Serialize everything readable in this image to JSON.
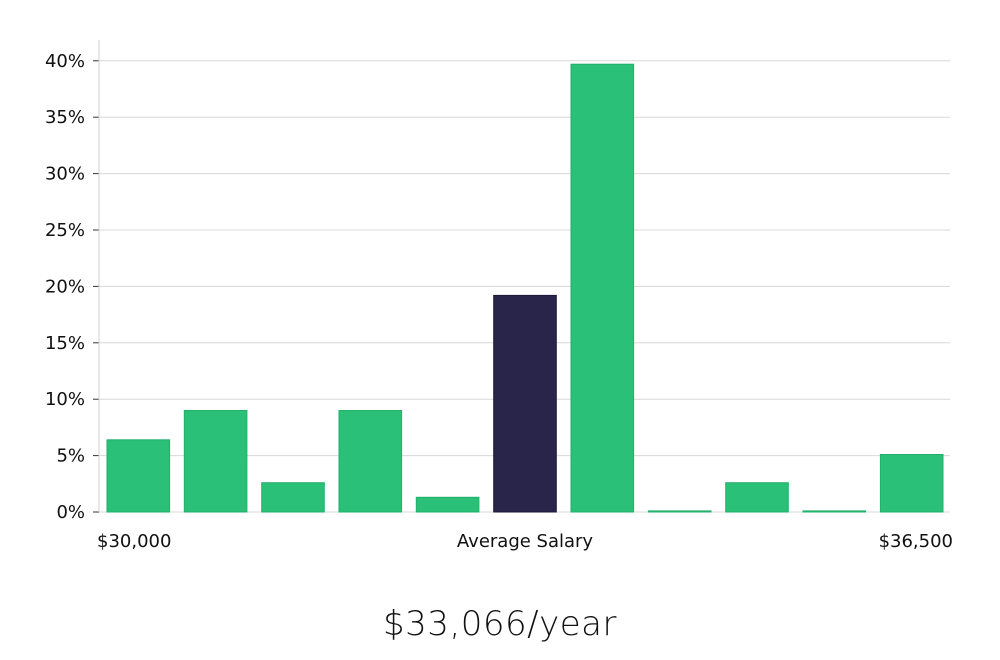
{
  "chart_data": {
    "type": "bar",
    "categories": [
      "1",
      "2",
      "3",
      "4",
      "5",
      "6",
      "7",
      "8",
      "9",
      "10",
      "11"
    ],
    "values": [
      6.4,
      9.0,
      2.6,
      9.0,
      1.3,
      19.2,
      39.7,
      0.1,
      2.6,
      0.1,
      5.1
    ],
    "highlight_index": 5,
    "ylim": [
      0,
      41.5
    ],
    "yticks": [
      0,
      5,
      10,
      15,
      20,
      25,
      30,
      35,
      40
    ],
    "ytick_labels": [
      "0%",
      "5%",
      "10%",
      "15%",
      "20%",
      "25%",
      "30%",
      "35%",
      "40%"
    ],
    "x_labels": {
      "left": "$30,000",
      "center": "Average Salary",
      "right": "$36,500"
    },
    "colors": {
      "bar": "#2ac077",
      "highlight": "#29254a",
      "grid": "#d8d8d8",
      "axis": "#d0d0d0"
    },
    "grid": true
  },
  "summary": {
    "value": "$33,066/year"
  }
}
